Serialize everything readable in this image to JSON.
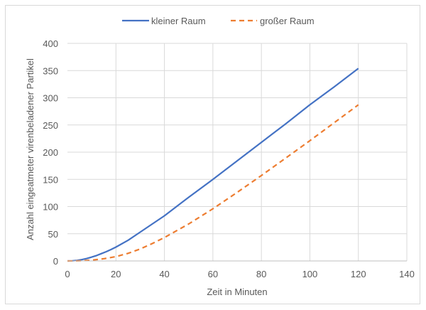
{
  "chart_data": {
    "type": "line",
    "xlabel": "Zeit in Minuten",
    "ylabel": "Anzahl eingeatmeter virenbeladener Partikel",
    "xlim": [
      0,
      140
    ],
    "ylim": [
      0,
      400
    ],
    "xticks": [
      0,
      20,
      40,
      60,
      80,
      100,
      120,
      140
    ],
    "yticks": [
      0,
      50,
      100,
      150,
      200,
      250,
      300,
      350,
      400
    ],
    "grid": true,
    "legend_position": "top",
    "series": [
      {
        "name": "kleiner Raum",
        "color": "#4472c4",
        "dash": "solid",
        "x": [
          0,
          2,
          4,
          6,
          8,
          10,
          12,
          14,
          16,
          18,
          20,
          25,
          30,
          35,
          40,
          50,
          60,
          70,
          80,
          90,
          100,
          110,
          120
        ],
        "y": [
          0,
          0.3,
          1,
          2.5,
          4.5,
          7,
          10,
          13.5,
          17,
          21,
          25.5,
          38,
          53,
          68,
          83,
          117,
          150,
          184,
          218,
          252,
          287,
          320,
          354
        ]
      },
      {
        "name": "großer Raum",
        "color": "#ed7d31",
        "dash": "dashed",
        "x": [
          0,
          5,
          10,
          15,
          20,
          25,
          30,
          35,
          40,
          50,
          60,
          70,
          80,
          90,
          100,
          110,
          120
        ],
        "y": [
          0,
          0.3,
          1.5,
          4,
          8,
          14,
          22,
          32,
          43,
          68,
          96,
          126,
          157,
          189,
          221,
          254,
          287
        ]
      }
    ]
  }
}
